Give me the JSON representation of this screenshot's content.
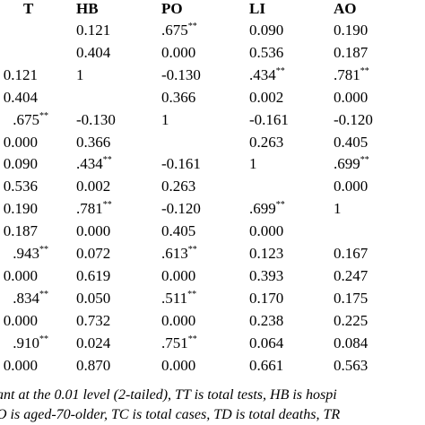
{
  "table": {
    "header": [
      "T",
      "HB",
      "PO",
      "LI",
      "AO"
    ],
    "rows": [
      [
        null,
        "0.121",
        {
          "text": ".675",
          "sup": "**"
        },
        "0.090",
        "0.190"
      ],
      [
        null,
        "0.404",
        "0.000",
        "0.536",
        "0.187"
      ],
      [
        "0.121",
        "1",
        "-0.130",
        {
          "text": ".434",
          "sup": "**"
        },
        {
          "text": ".781",
          "sup": "**"
        }
      ],
      [
        "0.404",
        null,
        "0.366",
        "0.002",
        "0.000"
      ],
      [
        {
          "text": ".675",
          "sup": "**"
        },
        "-0.130",
        "1",
        "-0.161",
        "-0.120"
      ],
      [
        "0.000",
        "0.366",
        null,
        "0.263",
        "0.405"
      ],
      [
        "0.090",
        {
          "text": ".434",
          "sup": "**"
        },
        "-0.161",
        "1",
        {
          "text": ".699",
          "sup": "**"
        }
      ],
      [
        "0.536",
        "0.002",
        "0.263",
        null,
        "0.000"
      ],
      [
        "0.190",
        {
          "text": ".781",
          "sup": "**"
        },
        "-0.120",
        {
          "text": ".699",
          "sup": "**"
        },
        "1"
      ],
      [
        "0.187",
        "0.000",
        "0.405",
        "0.000",
        null
      ],
      [
        {
          "text": ".943",
          "sup": "**"
        },
        "0.072",
        {
          "text": ".613",
          "sup": "**"
        },
        "0.123",
        "0.167"
      ],
      [
        "0.000",
        "0.619",
        "0.000",
        "0.393",
        "0.247"
      ],
      [
        {
          "text": ".834",
          "sup": "**"
        },
        "0.050",
        {
          "text": ".511",
          "sup": "**"
        },
        "0.170",
        "0.175"
      ],
      [
        "0.000",
        "0.732",
        "0.000",
        "0.238",
        "0.225"
      ],
      [
        {
          "text": ".910",
          "sup": "**"
        },
        "0.024",
        {
          "text": ".751",
          "sup": "**"
        },
        "0.064",
        "0.084"
      ],
      [
        "0.000",
        "0.870",
        "0.000",
        "0.661",
        "0.563"
      ]
    ]
  },
  "footer": [
    "ant at the 0.01 level (2-tailed), TT is total tests, HB is hospi",
    "O is aged-70-older, TC is total cases, TD is total deaths, TR"
  ]
}
